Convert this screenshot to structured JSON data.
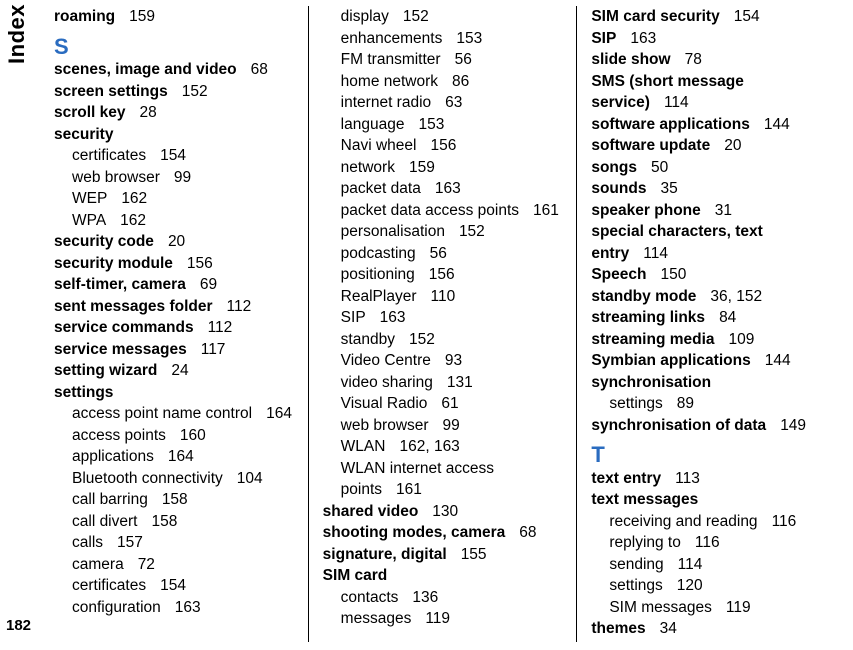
{
  "side_label": "Index",
  "page_number": "182",
  "columns": [
    {
      "items": [
        {
          "type": "entry",
          "text": "roaming",
          "page": "159"
        },
        {
          "type": "letter",
          "text": "S"
        },
        {
          "type": "entry",
          "text": "scenes, image and video",
          "page": "68"
        },
        {
          "type": "entry",
          "text": "screen settings",
          "page": "152"
        },
        {
          "type": "entry",
          "text": "scroll key",
          "page": "28"
        },
        {
          "type": "entry",
          "text": "security"
        },
        {
          "type": "sub",
          "text": "certificates",
          "page": "154"
        },
        {
          "type": "sub",
          "text": "web browser",
          "page": "99"
        },
        {
          "type": "sub",
          "text": "WEP",
          "page": "162"
        },
        {
          "type": "sub",
          "text": "WPA",
          "page": "162"
        },
        {
          "type": "entry",
          "text": "security code",
          "page": "20"
        },
        {
          "type": "entry",
          "text": "security module",
          "page": "156"
        },
        {
          "type": "entry",
          "text": "self-timer, camera",
          "page": "69"
        },
        {
          "type": "entry",
          "text": "sent messages folder",
          "page": "112"
        },
        {
          "type": "entry",
          "text": "service commands",
          "page": "112"
        },
        {
          "type": "entry",
          "text": "service messages",
          "page": "117"
        },
        {
          "type": "entry",
          "text": "setting wizard",
          "page": "24"
        },
        {
          "type": "entry",
          "text": "settings"
        },
        {
          "type": "sub",
          "text": "access point name control",
          "page": "164"
        },
        {
          "type": "sub",
          "text": "access points",
          "page": "160"
        },
        {
          "type": "sub",
          "text": "applications",
          "page": "164"
        },
        {
          "type": "sub",
          "text": "Bluetooth connectivity",
          "page": "104"
        },
        {
          "type": "sub",
          "text": "call barring",
          "page": "158"
        },
        {
          "type": "sub",
          "text": "call divert",
          "page": "158"
        },
        {
          "type": "sub",
          "text": "calls",
          "page": "157"
        },
        {
          "type": "sub",
          "text": "camera",
          "page": "72"
        },
        {
          "type": "sub",
          "text": "certificates",
          "page": "154"
        },
        {
          "type": "sub",
          "text": "configuration",
          "page": "163"
        }
      ]
    },
    {
      "items": [
        {
          "type": "sub",
          "text": "display",
          "page": "152"
        },
        {
          "type": "sub",
          "text": "enhancements",
          "page": "153"
        },
        {
          "type": "sub",
          "text": "FM transmitter",
          "page": "56"
        },
        {
          "type": "sub",
          "text": "home network",
          "page": "86"
        },
        {
          "type": "sub",
          "text": "internet radio",
          "page": "63"
        },
        {
          "type": "sub",
          "text": "language",
          "page": "153"
        },
        {
          "type": "sub",
          "text": "Navi wheel",
          "page": "156"
        },
        {
          "type": "sub",
          "text": "network",
          "page": "159"
        },
        {
          "type": "sub",
          "text": "packet data",
          "page": "163"
        },
        {
          "type": "sub",
          "text": "packet data access points",
          "page": "161"
        },
        {
          "type": "sub",
          "text": "personalisation",
          "page": "152"
        },
        {
          "type": "sub",
          "text": "podcasting",
          "page": "56"
        },
        {
          "type": "sub",
          "text": "positioning",
          "page": "156"
        },
        {
          "type": "sub",
          "text": "RealPlayer",
          "page": "110"
        },
        {
          "type": "sub",
          "text": "SIP",
          "page": "163"
        },
        {
          "type": "sub",
          "text": "standby",
          "page": "152"
        },
        {
          "type": "sub",
          "text": "Video Centre",
          "page": "93"
        },
        {
          "type": "sub",
          "text": "video sharing",
          "page": "131"
        },
        {
          "type": "sub",
          "text": "Visual Radio",
          "page": "61"
        },
        {
          "type": "sub",
          "text": "web browser",
          "page": "99"
        },
        {
          "type": "sub",
          "text": "WLAN",
          "page": "162, 163"
        },
        {
          "type": "sub",
          "text": "WLAN internet access points",
          "page": "161"
        },
        {
          "type": "entry",
          "text": "shared video",
          "page": "130"
        },
        {
          "type": "entry",
          "text": "shooting modes, camera",
          "page": "68"
        },
        {
          "type": "entry",
          "text": "signature, digital",
          "page": "155"
        },
        {
          "type": "entry",
          "text": "SIM card"
        },
        {
          "type": "sub",
          "text": "contacts",
          "page": "136"
        },
        {
          "type": "sub",
          "text": "messages",
          "page": "119"
        }
      ]
    },
    {
      "items": [
        {
          "type": "entry",
          "text": "SIM card security",
          "page": "154"
        },
        {
          "type": "entry",
          "text": "SIP",
          "page": "163"
        },
        {
          "type": "entry",
          "text": "slide show",
          "page": "78"
        },
        {
          "type": "entry",
          "text": "SMS (short message service)",
          "page": "114"
        },
        {
          "type": "entry",
          "text": "software applications",
          "page": "144"
        },
        {
          "type": "entry",
          "text": "software update",
          "page": "20"
        },
        {
          "type": "entry",
          "text": "songs",
          "page": "50"
        },
        {
          "type": "entry",
          "text": "sounds",
          "page": "35"
        },
        {
          "type": "entry",
          "text": "speaker phone",
          "page": "31"
        },
        {
          "type": "entry",
          "text": "special characters, text entry",
          "page": "114"
        },
        {
          "type": "entry",
          "text": "Speech",
          "page": "150"
        },
        {
          "type": "entry",
          "text": "standby mode",
          "page": "36, 152"
        },
        {
          "type": "entry",
          "text": "streaming links",
          "page": "84"
        },
        {
          "type": "entry",
          "text": "streaming media",
          "page": "109"
        },
        {
          "type": "entry",
          "text": "Symbian applications",
          "page": "144"
        },
        {
          "type": "entry",
          "text": "synchronisation"
        },
        {
          "type": "sub",
          "text": "settings",
          "page": "89"
        },
        {
          "type": "entry",
          "text": "synchronisation of data",
          "page": "149"
        },
        {
          "type": "letter",
          "text": "T"
        },
        {
          "type": "entry",
          "text": "text entry",
          "page": "113"
        },
        {
          "type": "entry",
          "text": "text messages"
        },
        {
          "type": "sub",
          "text": "receiving and reading",
          "page": "116"
        },
        {
          "type": "sub",
          "text": "replying to",
          "page": "116"
        },
        {
          "type": "sub",
          "text": "sending",
          "page": "114"
        },
        {
          "type": "sub",
          "text": "settings",
          "page": "120"
        },
        {
          "type": "sub",
          "text": "SIM messages",
          "page": "119"
        },
        {
          "type": "entry",
          "text": "themes",
          "page": "34"
        }
      ]
    }
  ]
}
